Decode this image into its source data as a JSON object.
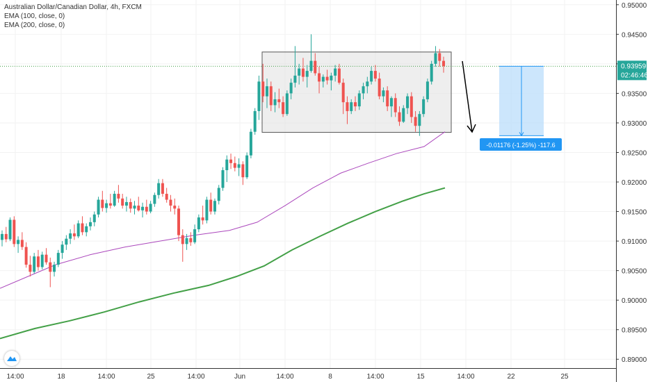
{
  "header": {
    "symbol_title": "Australian Dollar/Canadian Dollar, 4h, FXCM",
    "indicators": [
      "EMA (100, close, 0)",
      "EMA (200, close, 0)"
    ]
  },
  "price_tag": {
    "price": "0.93959",
    "countdown": "02:46:46"
  },
  "measure_label": "-0.01176 (-1.25%) -117.6",
  "colors": {
    "up": "#26a69a",
    "down": "#ef5350",
    "ema100": "#ab47bc",
    "ema200": "#43a047",
    "price_line": "#43a047",
    "measure_fill": "#bbdefb",
    "measure_line": "#2196f3",
    "label_bg": "#2196f3",
    "box_fill": "#e0e0e0"
  },
  "chart_data": {
    "type": "candlestick",
    "x_tick_labels": [
      "14:00",
      "18",
      "14:00",
      "25",
      "14:00",
      "Jun",
      "14:00",
      "8",
      "14:00",
      "15",
      "14:00",
      "22",
      "25"
    ],
    "y_tick_labels": [
      "0.95000",
      "0.94500",
      "0.94000",
      "0.93500",
      "0.93000",
      "0.92500",
      "0.92000",
      "0.91500",
      "0.91000",
      "0.90500",
      "0.90000",
      "0.89500",
      "0.89000"
    ],
    "ylim": [
      0.8885,
      0.9508
    ],
    "last_price": 0.93959,
    "candles": [
      [
        0.9102,
        0.9118,
        0.9091,
        0.9112
      ],
      [
        0.9112,
        0.9124,
        0.9098,
        0.9103
      ],
      [
        0.9103,
        0.914,
        0.91,
        0.9136
      ],
      [
        0.9136,
        0.9142,
        0.909,
        0.9095
      ],
      [
        0.9095,
        0.9108,
        0.908,
        0.9102
      ],
      [
        0.9102,
        0.9115,
        0.9085,
        0.909
      ],
      [
        0.909,
        0.9098,
        0.9055,
        0.906
      ],
      [
        0.906,
        0.9075,
        0.904,
        0.9048
      ],
      [
        0.9048,
        0.908,
        0.9045,
        0.9074
      ],
      [
        0.9074,
        0.9085,
        0.905,
        0.9056
      ],
      [
        0.9056,
        0.9082,
        0.9052,
        0.9077
      ],
      [
        0.9077,
        0.9088,
        0.906,
        0.9064
      ],
      [
        0.9064,
        0.9072,
        0.9022,
        0.9048
      ],
      [
        0.9048,
        0.9065,
        0.904,
        0.906
      ],
      [
        0.906,
        0.9085,
        0.9056,
        0.908
      ],
      [
        0.908,
        0.91,
        0.907,
        0.9094
      ],
      [
        0.9094,
        0.911,
        0.9085,
        0.9104
      ],
      [
        0.9104,
        0.912,
        0.9095,
        0.9113
      ],
      [
        0.9113,
        0.9128,
        0.9102,
        0.9108
      ],
      [
        0.9108,
        0.9135,
        0.9105,
        0.913
      ],
      [
        0.913,
        0.9142,
        0.911,
        0.9115
      ],
      [
        0.9115,
        0.913,
        0.9108,
        0.9125
      ],
      [
        0.9125,
        0.914,
        0.9118,
        0.9132
      ],
      [
        0.9132,
        0.915,
        0.9125,
        0.9145
      ],
      [
        0.9145,
        0.9175,
        0.914,
        0.917
      ],
      [
        0.917,
        0.9185,
        0.915,
        0.9156
      ],
      [
        0.9156,
        0.917,
        0.9148,
        0.9164
      ],
      [
        0.9164,
        0.918,
        0.9155,
        0.916
      ],
      [
        0.916,
        0.9185,
        0.9158,
        0.918
      ],
      [
        0.918,
        0.9195,
        0.9165,
        0.9172
      ],
      [
        0.9172,
        0.918,
        0.9155,
        0.916
      ],
      [
        0.916,
        0.9175,
        0.915,
        0.9166
      ],
      [
        0.9166,
        0.9172,
        0.9148,
        0.9155
      ],
      [
        0.9155,
        0.9168,
        0.9145,
        0.916
      ],
      [
        0.916,
        0.9175,
        0.915,
        0.9152
      ],
      [
        0.9152,
        0.9165,
        0.914,
        0.9158
      ],
      [
        0.9158,
        0.917,
        0.9145,
        0.915
      ],
      [
        0.915,
        0.9168,
        0.9147,
        0.9163
      ],
      [
        0.9163,
        0.9182,
        0.9158,
        0.9178
      ],
      [
        0.9178,
        0.9205,
        0.9172,
        0.9198
      ],
      [
        0.9198,
        0.9205,
        0.9175,
        0.918
      ],
      [
        0.918,
        0.919,
        0.9165,
        0.917
      ],
      [
        0.917,
        0.9178,
        0.915,
        0.916
      ],
      [
        0.916,
        0.9172,
        0.9145,
        0.9155
      ],
      [
        0.9155,
        0.916,
        0.91,
        0.911
      ],
      [
        0.911,
        0.912,
        0.9065,
        0.9095
      ],
      [
        0.9095,
        0.9112,
        0.9085,
        0.9105
      ],
      [
        0.9105,
        0.9115,
        0.9092,
        0.9098
      ],
      [
        0.9098,
        0.9128,
        0.9095,
        0.912
      ],
      [
        0.912,
        0.9145,
        0.9115,
        0.914
      ],
      [
        0.914,
        0.916,
        0.9128,
        0.9135
      ],
      [
        0.9135,
        0.9175,
        0.913,
        0.917
      ],
      [
        0.917,
        0.9182,
        0.9145,
        0.915
      ],
      [
        0.915,
        0.9172,
        0.9145,
        0.9168
      ],
      [
        0.9168,
        0.9195,
        0.9162,
        0.919
      ],
      [
        0.919,
        0.9225,
        0.9185,
        0.922
      ],
      [
        0.922,
        0.9245,
        0.92,
        0.9238
      ],
      [
        0.9238,
        0.9248,
        0.9222,
        0.9232
      ],
      [
        0.9232,
        0.9243,
        0.9218,
        0.9224
      ],
      [
        0.9224,
        0.924,
        0.921,
        0.923
      ],
      [
        0.923,
        0.9235,
        0.9195,
        0.9208
      ],
      [
        0.9208,
        0.925,
        0.9205,
        0.9245
      ],
      [
        0.9245,
        0.929,
        0.924,
        0.9285
      ],
      [
        0.9285,
        0.9325,
        0.928,
        0.932
      ],
      [
        0.932,
        0.938,
        0.9305,
        0.937
      ],
      [
        0.937,
        0.94,
        0.9335,
        0.9345
      ],
      [
        0.9345,
        0.9375,
        0.9325,
        0.9362
      ],
      [
        0.9362,
        0.937,
        0.932,
        0.933
      ],
      [
        0.933,
        0.9352,
        0.9318,
        0.934
      ],
      [
        0.934,
        0.9358,
        0.9325,
        0.9335
      ],
      [
        0.9335,
        0.9345,
        0.931,
        0.9315
      ],
      [
        0.9315,
        0.9355,
        0.9312,
        0.935
      ],
      [
        0.935,
        0.9375,
        0.934,
        0.9368
      ],
      [
        0.9368,
        0.943,
        0.936,
        0.938
      ],
      [
        0.938,
        0.94,
        0.9365,
        0.9392
      ],
      [
        0.9392,
        0.941,
        0.937,
        0.9378
      ],
      [
        0.9378,
        0.9398,
        0.936,
        0.9388
      ],
      [
        0.9388,
        0.945,
        0.9385,
        0.9405
      ],
      [
        0.9405,
        0.9418,
        0.938,
        0.9384
      ],
      [
        0.9384,
        0.9395,
        0.935,
        0.937
      ],
      [
        0.937,
        0.9382,
        0.936,
        0.9378
      ],
      [
        0.9378,
        0.939,
        0.9365,
        0.9372
      ],
      [
        0.9372,
        0.9385,
        0.9355,
        0.938
      ],
      [
        0.938,
        0.9398,
        0.937,
        0.9392
      ],
      [
        0.9392,
        0.94,
        0.9365,
        0.9368
      ],
      [
        0.9368,
        0.9375,
        0.9315,
        0.9335
      ],
      [
        0.9335,
        0.9345,
        0.9298,
        0.932
      ],
      [
        0.932,
        0.934,
        0.9315,
        0.9335
      ],
      [
        0.9335,
        0.9345,
        0.932,
        0.9328
      ],
      [
        0.9328,
        0.9355,
        0.9322,
        0.935
      ],
      [
        0.935,
        0.9368,
        0.934,
        0.9362
      ],
      [
        0.9362,
        0.9378,
        0.935,
        0.937
      ],
      [
        0.937,
        0.9395,
        0.9365,
        0.9388
      ],
      [
        0.9388,
        0.9398,
        0.937,
        0.9375
      ],
      [
        0.9375,
        0.9385,
        0.934,
        0.9345
      ],
      [
        0.9345,
        0.936,
        0.9335,
        0.9355
      ],
      [
        0.9355,
        0.9362,
        0.932,
        0.9328
      ],
      [
        0.9328,
        0.9345,
        0.931,
        0.9342
      ],
      [
        0.9342,
        0.935,
        0.931,
        0.9318
      ],
      [
        0.9318,
        0.9328,
        0.9295,
        0.9302
      ],
      [
        0.9302,
        0.933,
        0.93,
        0.9325
      ],
      [
        0.9325,
        0.935,
        0.9315,
        0.9345
      ],
      [
        0.9345,
        0.9352,
        0.93,
        0.931
      ],
      [
        0.931,
        0.932,
        0.9285,
        0.9295
      ],
      [
        0.9295,
        0.932,
        0.9278,
        0.9315
      ],
      [
        0.9315,
        0.9345,
        0.931,
        0.934
      ],
      [
        0.934,
        0.9375,
        0.9335,
        0.937
      ],
      [
        0.937,
        0.9405,
        0.9365,
        0.94
      ],
      [
        0.94,
        0.943,
        0.9395,
        0.9418
      ],
      [
        0.9418,
        0.9425,
        0.9395,
        0.9405
      ],
      [
        0.9405,
        0.9412,
        0.9385,
        0.9396
      ]
    ],
    "ema100": [
      [
        0,
        0.902
      ],
      [
        40,
        0.904
      ],
      [
        80,
        0.906
      ],
      [
        130,
        0.9077
      ],
      [
        180,
        0.909
      ],
      [
        230,
        0.91
      ],
      [
        280,
        0.911
      ],
      [
        330,
        0.9118
      ],
      [
        370,
        0.9132
      ],
      [
        410,
        0.916
      ],
      [
        450,
        0.919
      ],
      [
        490,
        0.9215
      ],
      [
        530,
        0.9232
      ],
      [
        570,
        0.9248
      ],
      [
        610,
        0.926
      ],
      [
        640,
        0.9285
      ]
    ],
    "ema200": [
      [
        0,
        0.8935
      ],
      [
        50,
        0.8952
      ],
      [
        100,
        0.8965
      ],
      [
        150,
        0.898
      ],
      [
        200,
        0.8997
      ],
      [
        250,
        0.9012
      ],
      [
        300,
        0.9025
      ],
      [
        340,
        0.904
      ],
      [
        380,
        0.9058
      ],
      [
        420,
        0.9085
      ],
      [
        460,
        0.9108
      ],
      [
        500,
        0.913
      ],
      [
        540,
        0.915
      ],
      [
        580,
        0.9168
      ],
      [
        610,
        0.918
      ],
      [
        640,
        0.919
      ]
    ],
    "consolidation_box": {
      "x0": 377,
      "x1": 649,
      "y_top": 0.942,
      "y_bottom": 0.9284
    },
    "projection": {
      "x0": 718,
      "x1": 782,
      "from": 0.93959,
      "to": 0.92783
    },
    "x_axis_range": [
      0,
      886
    ]
  }
}
